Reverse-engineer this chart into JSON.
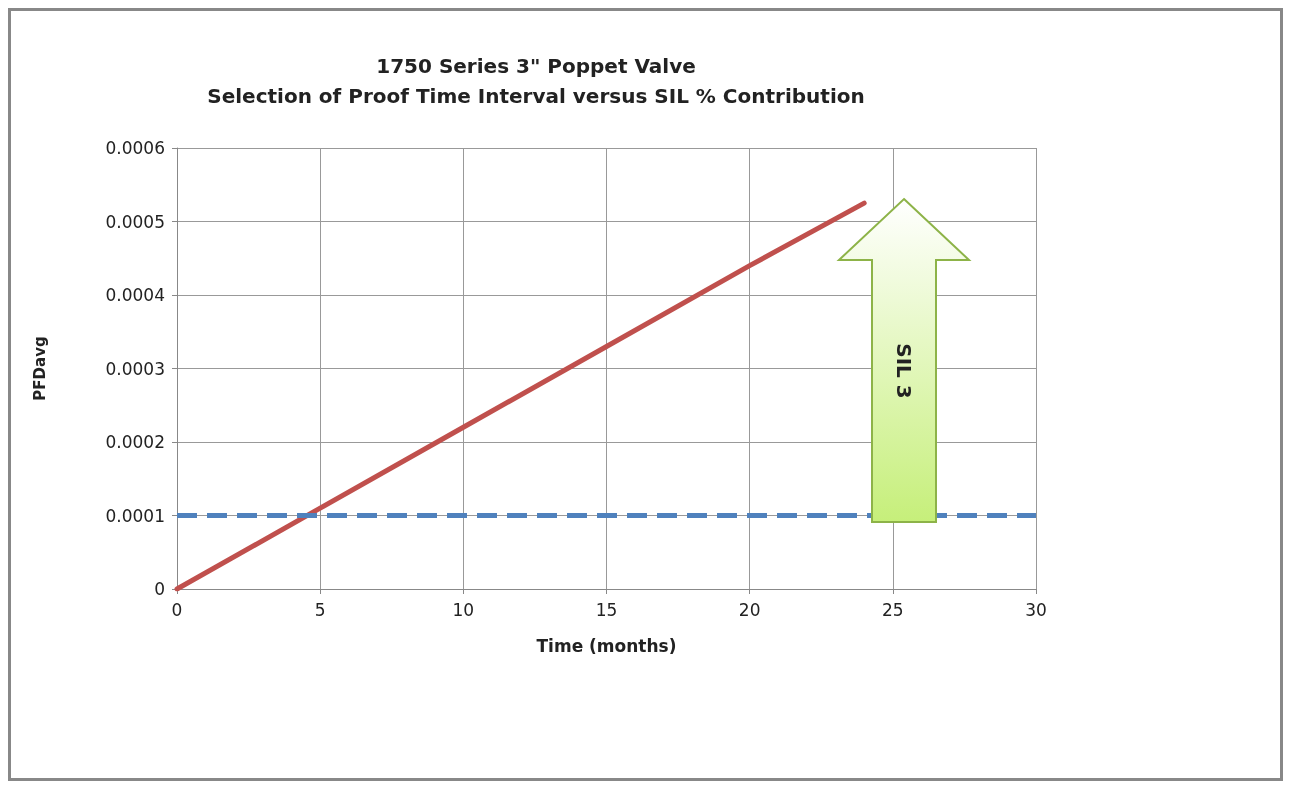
{
  "chart_data": {
    "type": "line",
    "title": "1750 Series 3\" Poppet Valve",
    "subtitle": "Selection of Proof Time Interval versus SIL % Contribution",
    "xlabel": "Time (months)",
    "ylabel": "PFDavg",
    "x": [
      0,
      5,
      10,
      15,
      20,
      24
    ],
    "series": [
      {
        "color": "#c0504d",
        "values": [
          0,
          0.00011,
          0.00022,
          0.00033,
          0.00044,
          0.000525
        ]
      }
    ],
    "xlim": [
      0,
      30
    ],
    "xticks": [
      0,
      5,
      10,
      15,
      20,
      25,
      30
    ],
    "ylim": [
      0,
      0.0006
    ],
    "yticks": [
      0,
      0.0001,
      0.0002,
      0.0003,
      0.0004,
      0.0005,
      0.0006
    ],
    "ref_lines": [
      {
        "axis": "y",
        "value": 0.0001,
        "color": "#4f81bd",
        "line_style": "dashed"
      }
    ],
    "annotations": [
      "SIL 3"
    ],
    "grid": true,
    "marker": "none",
    "line_style": "solid"
  }
}
